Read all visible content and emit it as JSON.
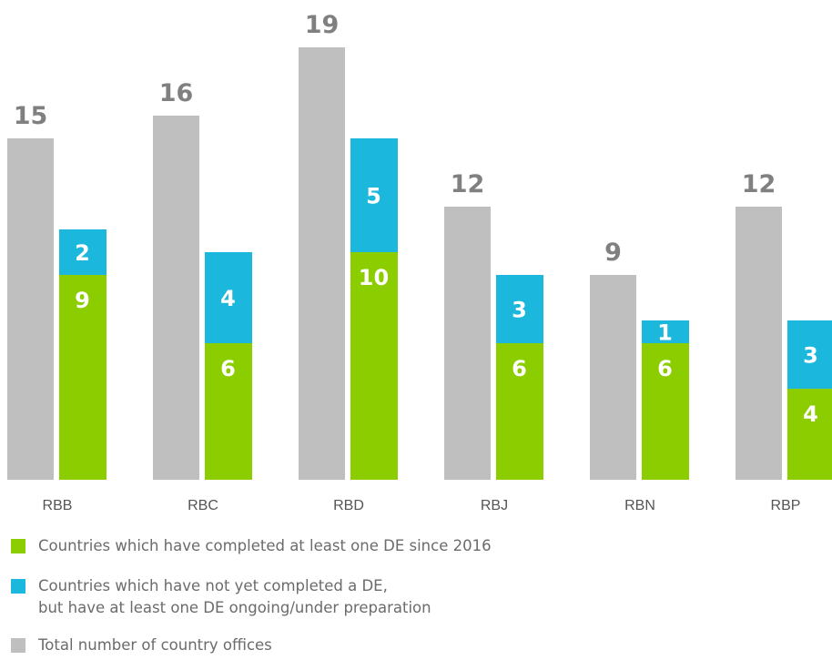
{
  "chart_data": {
    "type": "bar",
    "categories": [
      "RBB",
      "RBC",
      "RBD",
      "RBJ",
      "RBN",
      "RBP"
    ],
    "series": [
      {
        "name": "Total number of country offices",
        "values": [
          15,
          16,
          19,
          12,
          9,
          12
        ],
        "color": "#bfbfbf",
        "stack": "total"
      },
      {
        "name": "Countries which have completed at least one DE since 2016",
        "values": [
          9,
          6,
          10,
          6,
          6,
          4
        ],
        "color": "#8ccd00",
        "stack": "de"
      },
      {
        "name": "Countries which have not yet completed a DE, but have at least one DE ongoing/under preparation",
        "values": [
          2,
          4,
          5,
          3,
          1,
          3
        ],
        "color": "#1cb7dc",
        "stack": "de"
      }
    ],
    "ylim": [
      0,
      20
    ],
    "grid": false,
    "legend_position": "bottom-left",
    "value_label_colors": {
      "total": "#808080",
      "stacked": "#ffffff"
    }
  },
  "legend": [
    {
      "lines": [
        "Countries which have completed at least one DE since 2016"
      ],
      "color": "#8ccd00"
    },
    {
      "lines": [
        "Countries which have not yet completed a DE,",
        "but have at least one DE ongoing/under preparation"
      ],
      "color": "#1cb7dc"
    },
    {
      "lines": [
        "Total number of country offices"
      ],
      "color": "#bfbfbf"
    }
  ]
}
